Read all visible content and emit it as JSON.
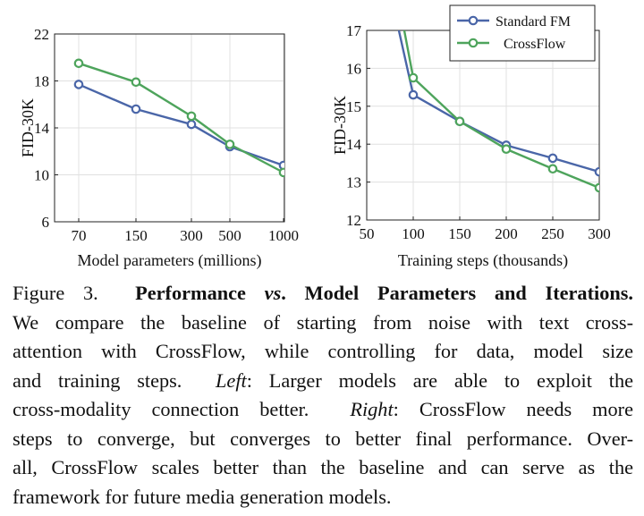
{
  "colors": {
    "standard_fm": "#4a66a8",
    "crossflow": "#4ea45c",
    "grid": "#e0e0e0",
    "axis": "#222222"
  },
  "chart_data": [
    {
      "type": "line",
      "title": "",
      "xlabel": "Model parameters (millions)",
      "ylabel": "FID-30K",
      "categories": [
        "70",
        "150",
        "300",
        "500",
        "1000"
      ],
      "ylim": [
        6,
        22
      ],
      "yticks": [
        6,
        10,
        14,
        18,
        22
      ],
      "grid": true,
      "series": [
        {
          "name": "Standard FM",
          "values": [
            17.7,
            15.6,
            14.3,
            12.4,
            10.8
          ]
        },
        {
          "name": "CrossFlow",
          "values": [
            19.5,
            17.9,
            15.0,
            12.6,
            10.2
          ]
        }
      ]
    },
    {
      "type": "line",
      "title": "",
      "xlabel": "Training steps (thousands)",
      "ylabel": "FID-30K",
      "xlim": [
        50,
        300
      ],
      "xticks": [
        50,
        100,
        150,
        200,
        250,
        300
      ],
      "ylim": [
        12,
        17
      ],
      "yticks": [
        12,
        13,
        14,
        15,
        16,
        17
      ],
      "grid": true,
      "legend": "top-right",
      "series": [
        {
          "name": "Standard FM",
          "x": [
            70,
            100,
            150,
            200,
            250,
            300
          ],
          "y": [
            18.6,
            15.3,
            14.6,
            13.97,
            13.63,
            13.27
          ],
          "marker_from": 1
        },
        {
          "name": "CrossFlow",
          "x": [
            78,
            100,
            150,
            200,
            250,
            300
          ],
          "y": [
            18.6,
            15.75,
            14.6,
            13.87,
            13.35,
            12.85
          ],
          "marker_from": 1
        }
      ]
    }
  ],
  "caption": {
    "figure_label": "Figure 3.",
    "bold_a": "Performance",
    "bold_vs": "vs",
    "bold_b": ". Model Parameters and Iterations.",
    "line2": "We compare the baseline of starting from noise with text cross-",
    "line3": "attention with CrossFlow, while controlling for data, model size",
    "line4a": "and training steps.",
    "left_label": "Left",
    "line4b": ": Larger models are able to exploit the",
    "line5a": "cross-modality connection better.",
    "right_label": "Right",
    "line5b": ": CrossFlow needs more",
    "line6": "steps to converge, but converges to better final performance. Over-",
    "line7": "all, CrossFlow scales better than the baseline and can serve as the",
    "line8": "framework for future media generation models."
  }
}
